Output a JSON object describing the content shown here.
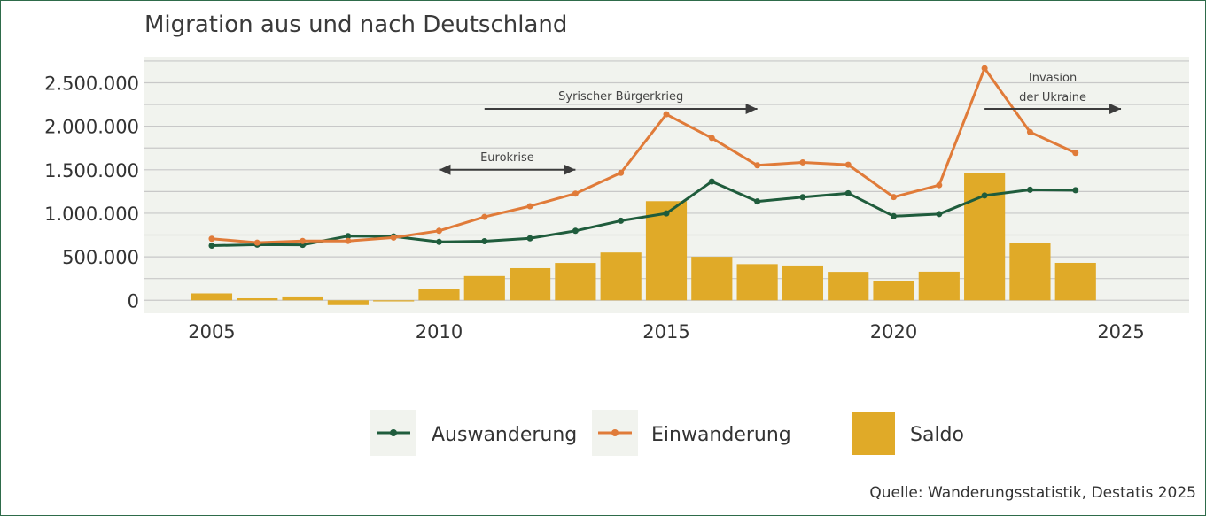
{
  "chart_data": {
    "type": "bar+line",
    "title": "Migration aus und nach Deutschland",
    "xlabel": "",
    "ylabel": "",
    "xlim": [
      2003.5,
      2026.5
    ],
    "ylim": [
      -150000,
      2800000
    ],
    "x_ticks": [
      2005,
      2010,
      2015,
      2020,
      2025
    ],
    "x_tick_labels": [
      "2005",
      "2010",
      "2015",
      "2020",
      "2025"
    ],
    "y_ticks": [
      0,
      500000,
      1000000,
      1500000,
      2000000,
      2500000
    ],
    "y_tick_labels": [
      "0",
      "500.000",
      "1.000.000",
      "1.500.000",
      "2.000.000",
      "2.500.000"
    ],
    "gridlines": [
      0,
      250000,
      500000,
      750000,
      1000000,
      1250000,
      1500000,
      1750000,
      2000000,
      2250000,
      2500000,
      2750000
    ],
    "x": [
      2005,
      2006,
      2007,
      2008,
      2009,
      2010,
      2011,
      2012,
      2013,
      2014,
      2015,
      2016,
      2017,
      2018,
      2019,
      2020,
      2021,
      2022,
      2023,
      2024
    ],
    "series": [
      {
        "name": "Auswanderung",
        "type": "line",
        "color": "#1f5c3c",
        "values": [
          628000,
          639000,
          637000,
          738000,
          734000,
          671000,
          679000,
          712000,
          798000,
          914000,
          998000,
          1365000,
          1135000,
          1185000,
          1230000,
          966000,
          990000,
          1204000,
          1270000,
          1265000
        ]
      },
      {
        "name": "Einwanderung",
        "type": "line",
        "color": "#e07b39",
        "values": [
          707000,
          662000,
          681000,
          682000,
          721000,
          798000,
          958000,
          1081000,
          1226000,
          1465000,
          2137000,
          1865000,
          1551000,
          1585000,
          1558000,
          1186000,
          1323000,
          2666000,
          1933000,
          1694000
        ]
      },
      {
        "name": "Saldo",
        "type": "bar",
        "color": "#e0aa28",
        "values": [
          79000,
          23000,
          44000,
          -56000,
          -13000,
          128000,
          279000,
          369000,
          429000,
          550000,
          1139000,
          500000,
          416000,
          400000,
          327000,
          220000,
          329000,
          1462000,
          663000,
          430000
        ]
      }
    ],
    "annotations": [
      {
        "text": "Eurokrise",
        "x_start": 2010,
        "x_end": 2013,
        "y": 1500000,
        "arrow": "both"
      },
      {
        "text": "Syrischer Bürgerkrieg",
        "x_start": 2011,
        "x_end": 2017,
        "y": 2200000,
        "arrow": "end"
      },
      {
        "text": "Invasion",
        "text2": "der Ukraine",
        "x_start": 2022,
        "x_end": 2025,
        "y": 2200000,
        "arrow": "end"
      }
    ],
    "legend": {
      "placement": "bottom",
      "items": [
        "Auswanderung",
        "Einwanderung",
        "Saldo"
      ]
    },
    "source": "Quelle: Wanderungsstatistik, Destatis 2025",
    "colors": {
      "plot_bg": "#f1f3ee",
      "grid": "#c8c8c8",
      "frame": "#2e6b4a",
      "arrow": "#3c3c3c"
    }
  }
}
